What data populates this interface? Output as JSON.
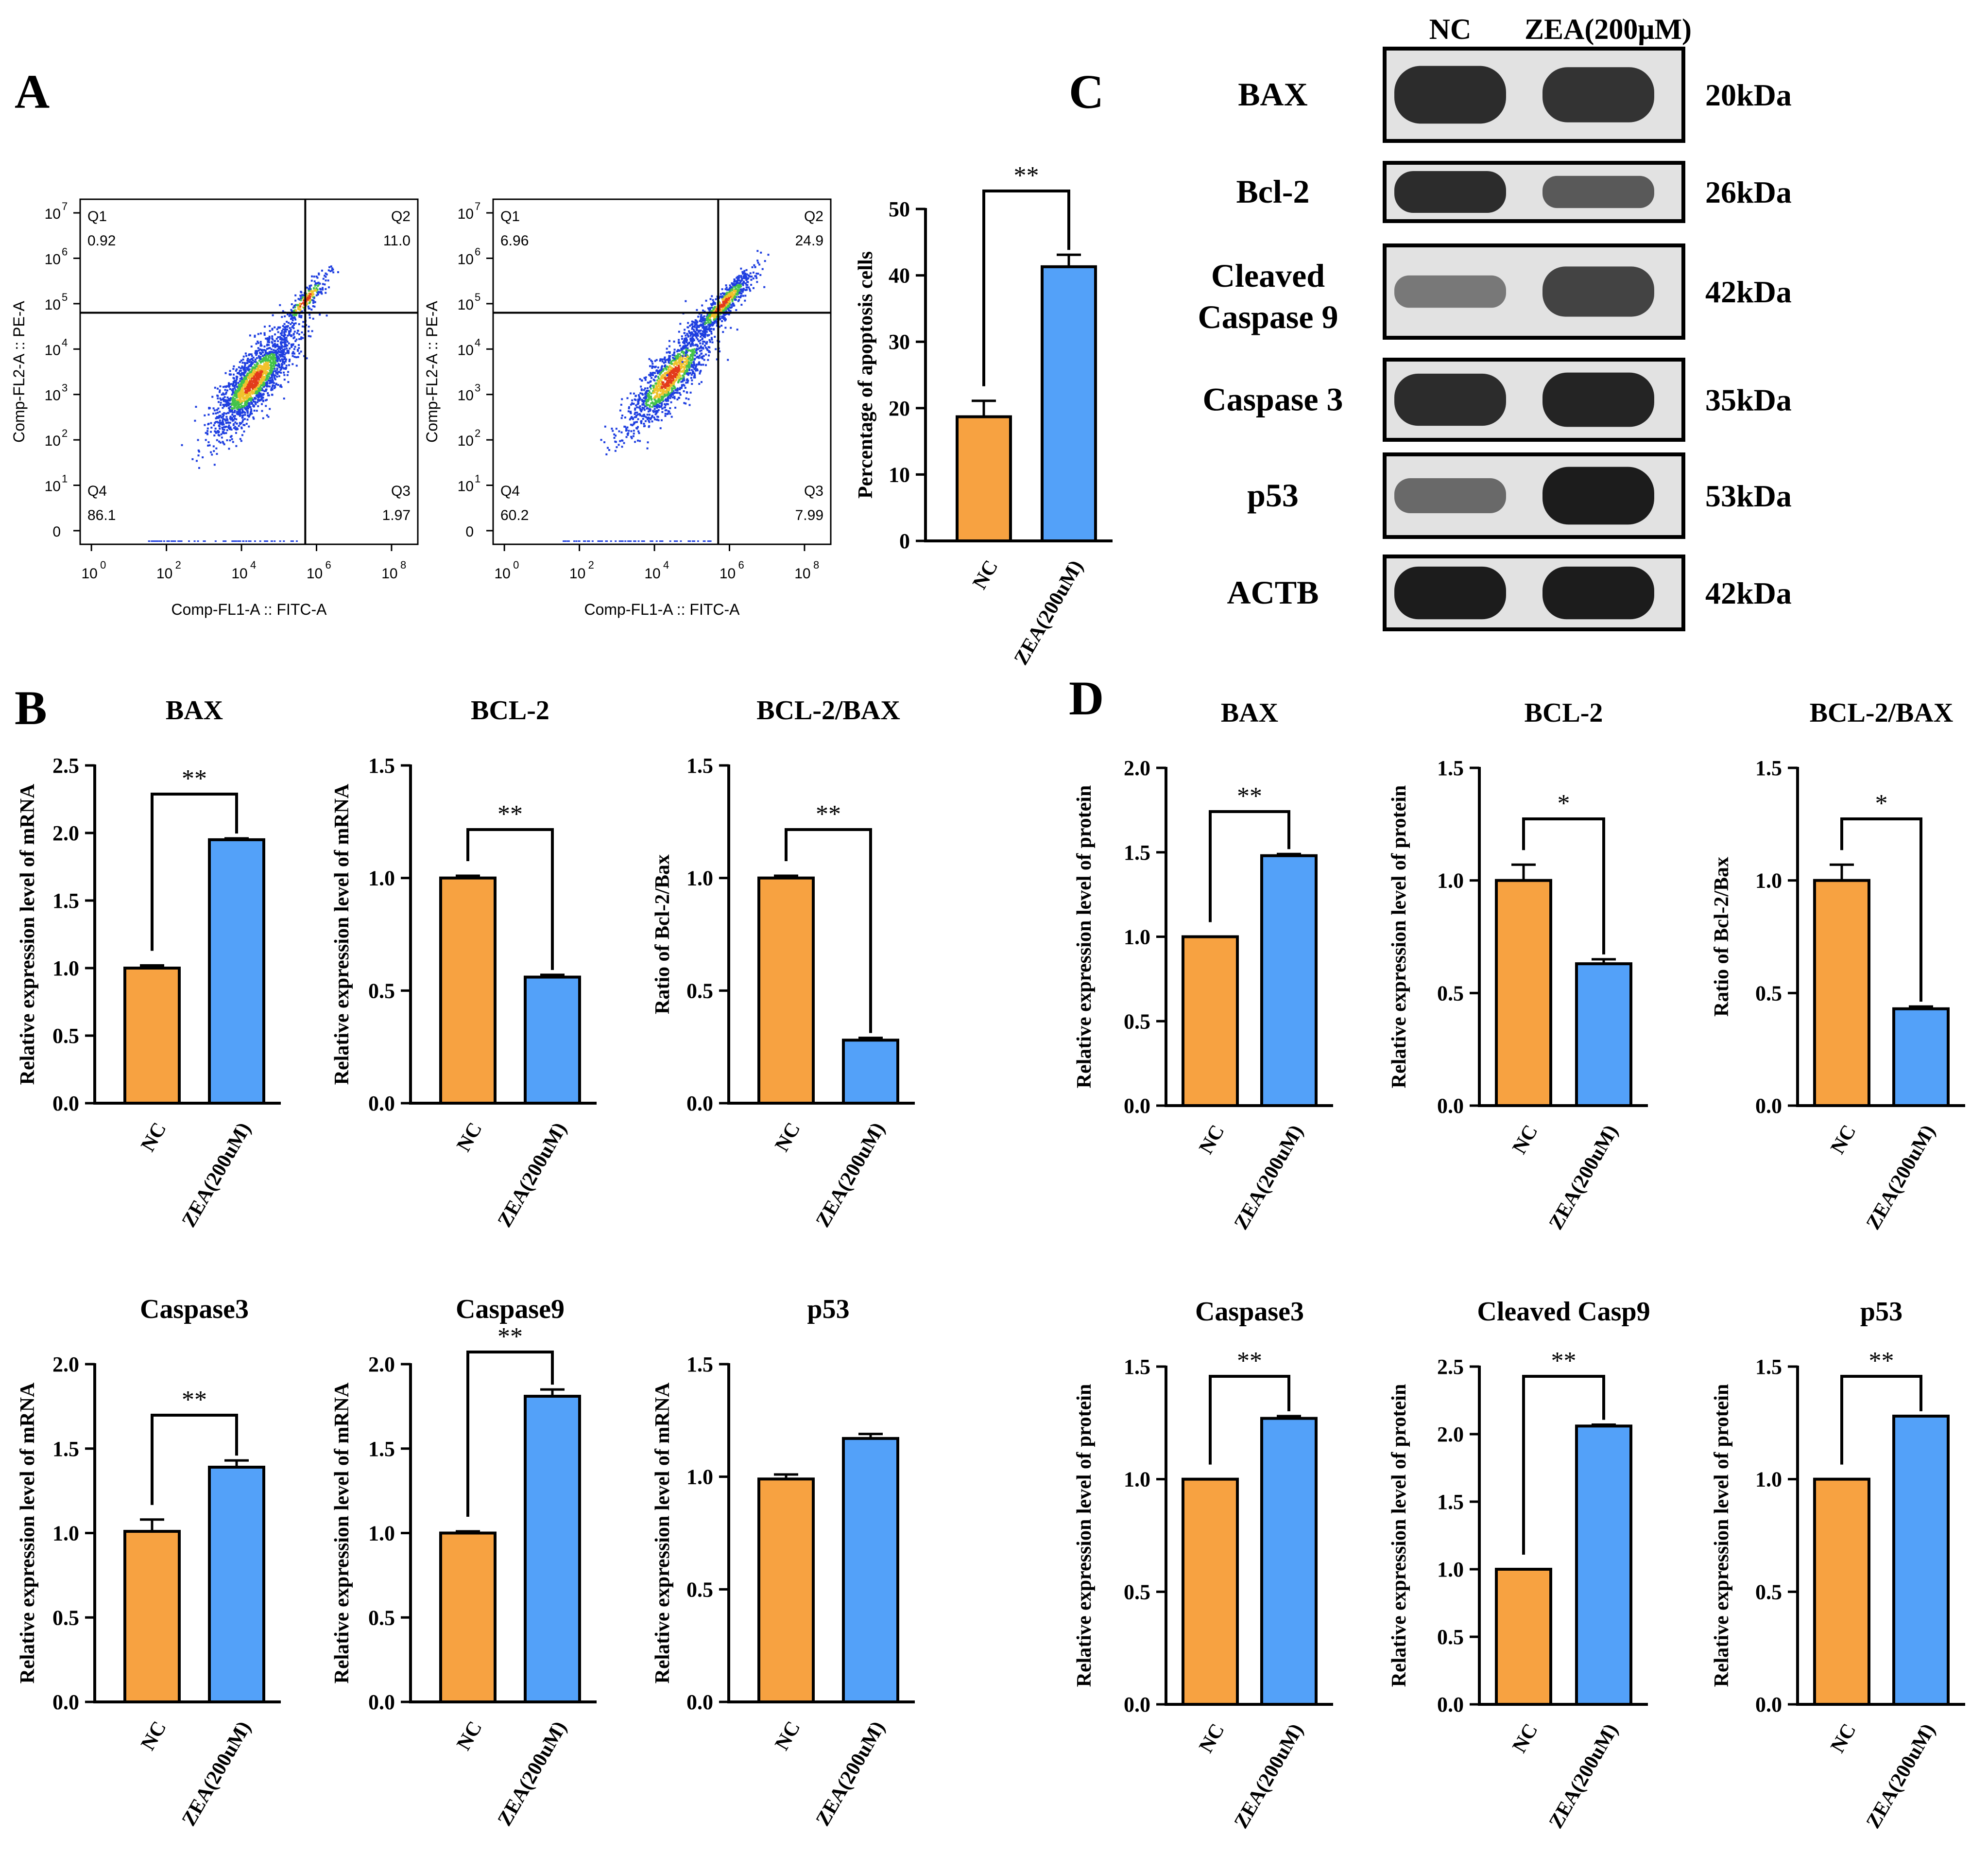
{
  "colors": {
    "nc": "#F7A241",
    "zea": "#53A1F9",
    "axis": "#000000",
    "blot_bg": "#e2e2e2",
    "band": "#141414"
  },
  "panel_labels": {
    "a": "A",
    "b": "B",
    "c": "C",
    "d": "D"
  },
  "flow": [
    {
      "xlabel": "Comp-FL1-A :: FITC-A",
      "ylabel": "Comp-FL2-A :: PE-A",
      "x_ticks": [
        "10",
        "10",
        "10",
        "10",
        "10"
      ],
      "x_exps": [
        "0",
        "2",
        "4",
        "6",
        "8"
      ],
      "y_ticks": [
        "10",
        "10",
        "10",
        "10",
        "10",
        "10",
        "10",
        "0"
      ],
      "y_exps": [
        "7",
        "6",
        "5",
        "4",
        "3",
        "2",
        "1",
        ""
      ],
      "gate": {
        "x_log": 5.7,
        "y_log": 4.8
      },
      "quadrants": {
        "q1_name": "Q1",
        "q1_val": "0.92",
        "q2_name": "Q2",
        "q2_val": "11.0",
        "q3_name": "Q3",
        "q3_val": "1.97",
        "q4_name": "Q4",
        "q4_val": "86.1"
      }
    },
    {
      "xlabel": "Comp-FL1-A :: FITC-A",
      "ylabel": "Comp-FL2-A :: PE-A",
      "x_ticks": [
        "10",
        "10",
        "10",
        "10",
        "10"
      ],
      "x_exps": [
        "0",
        "2",
        "4",
        "6",
        "8"
      ],
      "y_ticks": [
        "10",
        "10",
        "10",
        "10",
        "10",
        "10",
        "10",
        "0"
      ],
      "y_exps": [
        "7",
        "6",
        "5",
        "4",
        "3",
        "2",
        "1",
        ""
      ],
      "gate": {
        "x_log": 5.7,
        "y_log": 4.8
      },
      "quadrants": {
        "q1_name": "Q1",
        "q1_val": "6.96",
        "q2_name": "Q2",
        "q2_val": "24.9",
        "q3_name": "Q3",
        "q3_val": "7.99",
        "q4_name": "Q4",
        "q4_val": "60.2"
      }
    }
  ],
  "western_blot": {
    "lanes": [
      "NC",
      "ZEA(200μM)"
    ],
    "rows": [
      {
        "protein": "BAX",
        "protein2": "",
        "size": "20kDa",
        "nc": 0.85,
        "zea": 0.8
      },
      {
        "protein": "Bcl-2",
        "protein2": "",
        "size": "26kDa",
        "nc": 0.85,
        "zea": 0.55
      },
      {
        "protein": "Cleaved",
        "protein2": "Caspase 9",
        "size": "42kDa",
        "nc": 0.35,
        "zea": 0.7
      },
      {
        "protein": "Caspase 3",
        "protein2": "",
        "size": "35kDa",
        "nc": 0.85,
        "zea": 0.9
      },
      {
        "protein": "p53",
        "protein2": "",
        "size": "53kDa",
        "nc": 0.45,
        "zea": 0.95
      },
      {
        "protein": "ACTB",
        "protein2": "",
        "size": "42kDa",
        "nc": 0.95,
        "zea": 0.95
      }
    ]
  },
  "chart_data": [
    {
      "id": "A",
      "type": "bar",
      "title": "",
      "categories": [
        "NC",
        "ZEA(200uM)"
      ],
      "values": [
        18.7,
        41.3
      ],
      "errors": [
        2.4,
        1.8
      ],
      "ylabel": "Percentage of apoptosis cells",
      "ylim": [
        0,
        50
      ],
      "yticks": [
        "0",
        "10",
        "20",
        "30",
        "40",
        "50"
      ],
      "sig": "**"
    },
    {
      "id": "B1",
      "type": "bar",
      "title": "BAX",
      "categories": [
        "NC",
        "ZEA(200uM)"
      ],
      "values": [
        1.0,
        1.95
      ],
      "errors": [
        0.02,
        0.01
      ],
      "ylabel": "Relative expression level of mRNA",
      "ylim": [
        0,
        2.5
      ],
      "yticks": [
        "0.0",
        "0.5",
        "1.0",
        "1.5",
        "2.0",
        "2.5"
      ],
      "sig": "**"
    },
    {
      "id": "B2",
      "type": "bar",
      "title": "BCL-2",
      "categories": [
        "NC",
        "ZEA(200uM)"
      ],
      "values": [
        1.0,
        0.56
      ],
      "errors": [
        0.01,
        0.01
      ],
      "ylabel": "Relative expression level of mRNA",
      "ylim": [
        0,
        1.5
      ],
      "yticks": [
        "0.0",
        "0.5",
        "1.0",
        "1.5"
      ],
      "sig": "**"
    },
    {
      "id": "B3",
      "type": "bar",
      "title": "BCL-2/BAX",
      "categories": [
        "NC",
        "ZEA(200uM)"
      ],
      "values": [
        1.0,
        0.28
      ],
      "errors": [
        0.01,
        0.01
      ],
      "ylabel": "Ratio of Bcl-2/Bax",
      "ylim": [
        0,
        1.5
      ],
      "yticks": [
        "0.0",
        "0.5",
        "1.0",
        "1.5"
      ],
      "sig": "**"
    },
    {
      "id": "B4",
      "type": "bar",
      "title": "Caspase3",
      "categories": [
        "NC",
        "ZEA(200uM)"
      ],
      "values": [
        1.01,
        1.39
      ],
      "errors": [
        0.07,
        0.04
      ],
      "ylabel": "Relative expression level of mRNA",
      "ylim": [
        0,
        2.0
      ],
      "yticks": [
        "0.0",
        "0.5",
        "1.0",
        "1.5",
        "2.0"
      ],
      "sig": "**"
    },
    {
      "id": "B5",
      "type": "bar",
      "title": "Caspase9",
      "categories": [
        "NC",
        "ZEA(200uM)"
      ],
      "values": [
        1.0,
        1.81
      ],
      "errors": [
        0.01,
        0.04
      ],
      "ylabel": "Relative expression level of mRNA",
      "ylim": [
        0,
        2.0
      ],
      "yticks": [
        "0.0",
        "0.5",
        "1.0",
        "1.5",
        "2.0"
      ],
      "sig": "**"
    },
    {
      "id": "B6",
      "type": "bar",
      "title": "p53",
      "categories": [
        "NC",
        "ZEA(200uM)"
      ],
      "values": [
        0.99,
        1.17
      ],
      "errors": [
        0.02,
        0.02
      ],
      "ylabel": "Relative expression level of mRNA",
      "ylim": [
        0,
        1.5
      ],
      "yticks": [
        "0.0",
        "0.5",
        "1.0",
        "1.5"
      ],
      "sig": ""
    },
    {
      "id": "D1",
      "type": "bar",
      "title": "BAX",
      "categories": [
        "NC",
        "ZEA(200uM)"
      ],
      "values": [
        1.0,
        1.48
      ],
      "errors": [
        0.0,
        0.01
      ],
      "ylabel": "Relative expression level of protein",
      "ylim": [
        0,
        2.0
      ],
      "yticks": [
        "0.0",
        "0.5",
        "1.0",
        "1.5",
        "2.0"
      ],
      "sig": "**"
    },
    {
      "id": "D2",
      "type": "bar",
      "title": "BCL-2",
      "categories": [
        "NC",
        "ZEA(200uM)"
      ],
      "values": [
        1.0,
        0.63
      ],
      "errors": [
        0.07,
        0.02
      ],
      "ylabel": "Relative expression level of protein",
      "ylim": [
        0,
        1.5
      ],
      "yticks": [
        "0.0",
        "0.5",
        "1.0",
        "1.5"
      ],
      "sig": "*"
    },
    {
      "id": "D3",
      "type": "bar",
      "title": "BCL-2/BAX",
      "categories": [
        "NC",
        "ZEA(200uM)"
      ],
      "values": [
        1.0,
        0.43
      ],
      "errors": [
        0.07,
        0.01
      ],
      "ylabel": "Ratio of Bcl-2/Bax",
      "ylim": [
        0,
        1.5
      ],
      "yticks": [
        "0.0",
        "0.5",
        "1.0",
        "1.5"
      ],
      "sig": "*"
    },
    {
      "id": "D4",
      "type": "bar",
      "title": "Caspase3",
      "categories": [
        "NC",
        "ZEA(200uM)"
      ],
      "values": [
        1.0,
        1.27
      ],
      "errors": [
        0.0,
        0.01
      ],
      "ylabel": "Relative expression level of protein",
      "ylim": [
        0,
        1.5
      ],
      "yticks": [
        "0.0",
        "0.5",
        "1.0",
        "1.5"
      ],
      "sig": "**"
    },
    {
      "id": "D5",
      "type": "bar",
      "title": "Cleaved Casp9",
      "categories": [
        "NC",
        "ZEA(200uM)"
      ],
      "values": [
        1.0,
        2.06
      ],
      "errors": [
        0.0,
        0.01
      ],
      "ylabel": "Relative expression level of protein",
      "ylim": [
        0,
        2.5
      ],
      "yticks": [
        "0.0",
        "0.5",
        "1.0",
        "1.5",
        "2.0",
        "2.5"
      ],
      "sig": "**"
    },
    {
      "id": "D6",
      "type": "bar",
      "title": "p53",
      "categories": [
        "NC",
        "ZEA(200uM)"
      ],
      "values": [
        1.0,
        1.28
      ],
      "errors": [
        0.0,
        0.0
      ],
      "ylabel": "Relative expression level of protein",
      "ylim": [
        0,
        1.5
      ],
      "yticks": [
        "0.0",
        "0.5",
        "1.0",
        "1.5"
      ],
      "sig": "**"
    }
  ]
}
